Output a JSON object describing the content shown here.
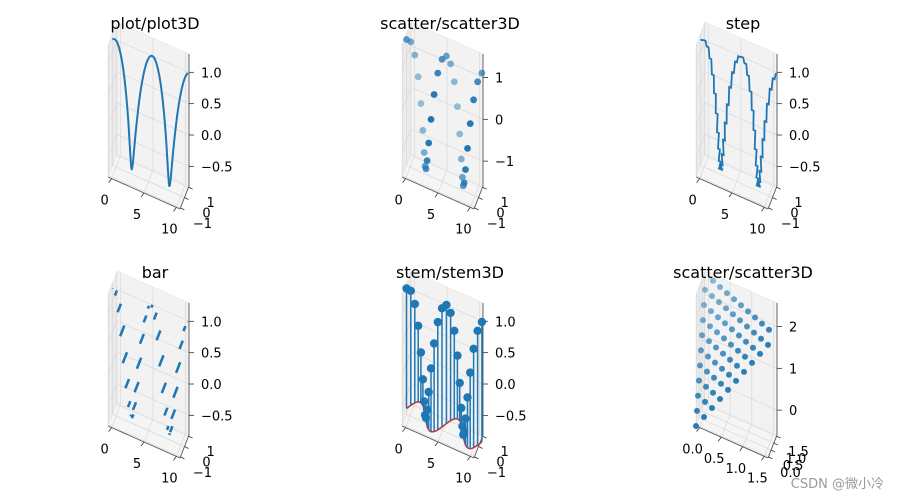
{
  "watermark": "CSDN @微小冷",
  "colors": {
    "series": "#1f77b4",
    "stem_baseline": "#d62728",
    "pane": "#f2f2f2",
    "grid": "#d9d9d9",
    "axis_line": "#000000"
  },
  "chart_data": [
    {
      "type": "line3d",
      "title": "plot/plot3D",
      "x_ticks": [
        "0",
        "5",
        "10"
      ],
      "y_ticks": [
        "−1",
        "0",
        "1"
      ],
      "z_ticks": [
        "−0.5",
        "0.0",
        "0.5",
        "1.0"
      ],
      "xlim": [
        0,
        12
      ],
      "ylim": [
        -1.1,
        1.1
      ],
      "zlim": [
        -1.1,
        1.1
      ],
      "function": "x=t, y=sin(t), z=cos(t), t in [0, 4π]"
    },
    {
      "type": "scatter3d",
      "title": "scatter/scatter3D",
      "x_ticks": [
        "0",
        "5",
        "10"
      ],
      "y_ticks": [
        "−1",
        "0",
        "1"
      ],
      "z_ticks": [
        "−1",
        "0",
        "1"
      ],
      "xlim": [
        0,
        12
      ],
      "ylim": [
        -1.1,
        1.1
      ],
      "zlim": [
        -1.1,
        1.1
      ],
      "function": "x=t, y=sin(t), z=cos(t), t in [0, 4π], 30 points"
    },
    {
      "type": "step3d",
      "title": "step",
      "x_ticks": [
        "0",
        "5",
        "10"
      ],
      "y_ticks": [
        "−1",
        "0",
        "1"
      ],
      "z_ticks": [
        "−0.5",
        "0.0",
        "0.5",
        "1.0"
      ],
      "xlim": [
        0,
        12
      ],
      "ylim": [
        -1.1,
        1.1
      ],
      "zlim": [
        -1.1,
        1.1
      ],
      "function": "x=t, y=sin(t), z=cos(t), t in [0, 4π], stepped"
    },
    {
      "type": "bar3d",
      "title": "bar",
      "x_ticks": [
        "0",
        "5",
        "10"
      ],
      "y_ticks": [
        "−1",
        "0",
        "1"
      ],
      "z_ticks": [
        "−0.5",
        "0.0",
        "0.5",
        "1.0"
      ],
      "xlim": [
        0,
        12
      ],
      "ylim": [
        -1.1,
        1.1
      ],
      "zlim": [
        -1.1,
        1.1
      ],
      "function": "bars at x=t, height sin(t), z level cos(t), t in [0, 4π]"
    },
    {
      "type": "stem3d",
      "title": "stem/stem3D",
      "x_ticks": [
        "0",
        "5",
        "10"
      ],
      "y_ticks": [
        "−1",
        "0",
        "1"
      ],
      "z_ticks": [
        "−0.5",
        "0.0",
        "0.5",
        "1.0"
      ],
      "xlim": [
        0,
        12
      ],
      "ylim": [
        -1.1,
        1.1
      ],
      "zlim": [
        -1.1,
        1.1
      ],
      "function": "stems from z=-1 to (t, sin(t), cos(t)), t in [0, 4π]"
    },
    {
      "type": "scatter3d-grid",
      "title": "scatter/scatter3D",
      "x_ticks": [
        "0.0",
        "0.5",
        "1.0",
        "1.5"
      ],
      "y_ticks": [
        "0.0",
        "0.5",
        "1.0",
        "1.5"
      ],
      "z_ticks": [
        "0",
        "1",
        "2"
      ],
      "xlim": [
        0,
        1.8
      ],
      "ylim": [
        0,
        1.8
      ],
      "zlim": [
        0,
        2.1
      ],
      "function": "grid x,y in [0,1.8] step 0.2, z = x + y"
    }
  ]
}
